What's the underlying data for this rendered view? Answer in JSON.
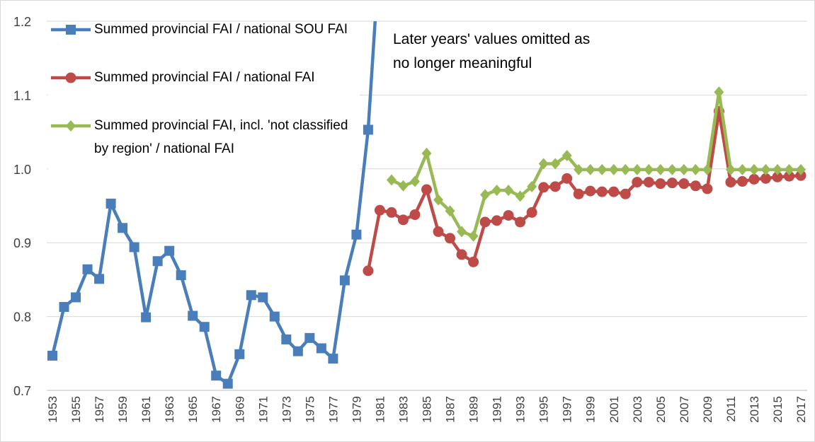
{
  "chart_data": {
    "type": "line",
    "categories": [
      "1953",
      null,
      "1955",
      null,
      "1957",
      null,
      "1959",
      null,
      "1961",
      null,
      "1963",
      null,
      "1965",
      null,
      "1967",
      null,
      "1969",
      null,
      "1971",
      null,
      "1973",
      null,
      "1975",
      null,
      "1977",
      null,
      "1979",
      null,
      "1981",
      null,
      "1983",
      null,
      "1985",
      null,
      "1987",
      null,
      "1989",
      null,
      "1991",
      null,
      "1993",
      null,
      "1995",
      null,
      "1997",
      null,
      "1999",
      null,
      "2001",
      null,
      "2003",
      null,
      "2005",
      null,
      "2007",
      null,
      "2009",
      null,
      "2011",
      null,
      "2013",
      null,
      "2015",
      null,
      "2017"
    ],
    "series": [
      {
        "name": "Summed provincial FAI / national SOU FAI",
        "color": "#4a7ebb",
        "marker": "square",
        "values": [
          0.747,
          0.813,
          0.826,
          0.864,
          0.851,
          0.953,
          0.92,
          0.894,
          0.799,
          0.875,
          0.889,
          0.856,
          0.801,
          0.786,
          0.72,
          0.709,
          0.749,
          0.829,
          0.826,
          0.8,
          0.769,
          0.753,
          0.771,
          0.757,
          0.743,
          0.849,
          0.911,
          1.053,
          1.3,
          null,
          null,
          null,
          null,
          null,
          null,
          null,
          null,
          null,
          null,
          null,
          null,
          null,
          null,
          null,
          null,
          null,
          null,
          null,
          null,
          null,
          null,
          null,
          null,
          null,
          null,
          null,
          null,
          null,
          null,
          null,
          null,
          null,
          null,
          null,
          null
        ]
      },
      {
        "name": "Summed provincial FAI / national FAI",
        "color": "#be4b48",
        "marker": "circle",
        "values": [
          null,
          null,
          null,
          null,
          null,
          null,
          null,
          null,
          null,
          null,
          null,
          null,
          null,
          null,
          null,
          null,
          null,
          null,
          null,
          null,
          null,
          null,
          null,
          null,
          null,
          null,
          null,
          0.862,
          0.944,
          0.941,
          0.931,
          0.938,
          0.972,
          0.915,
          0.906,
          0.884,
          0.874,
          0.928,
          0.93,
          0.937,
          0.928,
          0.941,
          0.975,
          0.976,
          0.987,
          0.966,
          0.97,
          0.969,
          0.969,
          0.966,
          0.982,
          0.982,
          0.98,
          0.981,
          0.98,
          0.977,
          0.973,
          1.078,
          0.982,
          0.983,
          0.986,
          0.987,
          0.989,
          0.99,
          0.991
        ]
      },
      {
        "name": "Summed provincial FAI, incl. 'not classified by region' / national FAI",
        "color": "#98b954",
        "marker": "diamond",
        "values": [
          null,
          null,
          null,
          null,
          null,
          null,
          null,
          null,
          null,
          null,
          null,
          null,
          null,
          null,
          null,
          null,
          null,
          null,
          null,
          null,
          null,
          null,
          null,
          null,
          null,
          null,
          null,
          null,
          null,
          0.985,
          0.977,
          0.983,
          1.021,
          0.958,
          0.943,
          0.915,
          0.909,
          0.965,
          0.971,
          0.971,
          0.963,
          0.976,
          1.007,
          1.007,
          1.018,
          0.999,
          0.999,
          0.999,
          0.999,
          0.999,
          0.999,
          0.999,
          0.999,
          0.999,
          0.999,
          0.999,
          0.999,
          1.104,
          0.999,
          0.999,
          0.999,
          0.999,
          0.999,
          0.999,
          0.999
        ]
      }
    ],
    "annotation": [
      "Later years' values omitted as",
      "no longer meaningful"
    ],
    "ylim": [
      0.7,
      1.2
    ],
    "yticks": [
      0.7,
      0.8,
      0.9,
      {
        "value": 1,
        "label": "1.0"
      },
      1.1,
      1.2
    ],
    "grid": true,
    "legend": "top-left"
  }
}
